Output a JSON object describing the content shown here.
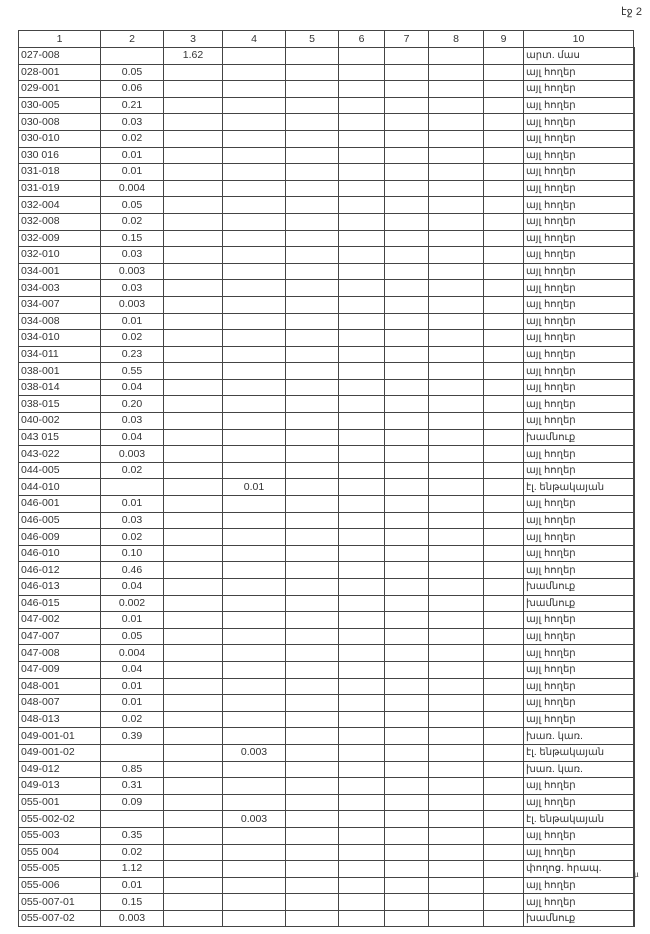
{
  "page_label": "էջ 2",
  "margin_mark": "µ",
  "columns": [
    "1",
    "2",
    "3",
    "4",
    "5",
    "6",
    "7",
    "8",
    "9",
    "10"
  ],
  "rows": [
    [
      "027-008",
      "",
      "1.62",
      "",
      "",
      "",
      "",
      "",
      "",
      "արտ. մաս"
    ],
    [
      "028-001",
      "0.05",
      "",
      "",
      "",
      "",
      "",
      "",
      "",
      "այլ հողեր"
    ],
    [
      "029-001",
      "0.06",
      "",
      "",
      "",
      "",
      "",
      "",
      "",
      "այլ հողեր"
    ],
    [
      "030-005",
      "0.21",
      "",
      "",
      "",
      "",
      "",
      "",
      "",
      "այլ հողեր"
    ],
    [
      "030-008",
      "0.03",
      "",
      "",
      "",
      "",
      "",
      "",
      "",
      "այլ հողեր"
    ],
    [
      "030-010",
      "0.02",
      "",
      "",
      "",
      "",
      "",
      "",
      "",
      "այլ հողեր"
    ],
    [
      "030 016",
      "0.01",
      "",
      "",
      "",
      "",
      "",
      "",
      "",
      "այլ հողեր"
    ],
    [
      "031-018",
      "0.01",
      "",
      "",
      "",
      "",
      "",
      "",
      "",
      "այլ հողեր"
    ],
    [
      "031-019",
      "0.004",
      "",
      "",
      "",
      "",
      "",
      "",
      "",
      "այլ հողեր"
    ],
    [
      "032-004",
      "0.05",
      "",
      "",
      "",
      "",
      "",
      "",
      "",
      "այլ հողեր"
    ],
    [
      "032-008",
      "0.02",
      "",
      "",
      "",
      "",
      "",
      "",
      "",
      "այլ հողեր"
    ],
    [
      "032-009",
      "0.15",
      "",
      "",
      "",
      "",
      "",
      "",
      "",
      "այլ հողեր"
    ],
    [
      "032-010",
      "0.03",
      "",
      "",
      "",
      "",
      "",
      "",
      "",
      "այլ հողեր"
    ],
    [
      "034-001",
      "0.003",
      "",
      "",
      "",
      "",
      "",
      "",
      "",
      "այլ հողեր"
    ],
    [
      "034-003",
      "0.03",
      "",
      "",
      "",
      "",
      "",
      "",
      "",
      "այլ հողեր"
    ],
    [
      "034-007",
      "0.003",
      "",
      "",
      "",
      "",
      "",
      "",
      "",
      "այլ հողեր"
    ],
    [
      "034-008",
      "0.01",
      "",
      "",
      "",
      "",
      "",
      "",
      "",
      "այլ հողեր"
    ],
    [
      "034-010",
      "0.02",
      "",
      "",
      "",
      "",
      "",
      "",
      "",
      "այլ հողեր"
    ],
    [
      "034-011",
      "0.23",
      "",
      "",
      "",
      "",
      "",
      "",
      "",
      "այլ հողեր"
    ],
    [
      "038-001",
      "0.55",
      "",
      "",
      "",
      "",
      "",
      "",
      "",
      "այլ հողեր"
    ],
    [
      "038-014",
      "0.04",
      "",
      "",
      "",
      "",
      "",
      "",
      "",
      "այլ հողեր"
    ],
    [
      "038-015",
      "0.20",
      "",
      "",
      "",
      "",
      "",
      "",
      "",
      "այլ հողեր"
    ],
    [
      "040-002",
      "0.03",
      "",
      "",
      "",
      "",
      "",
      "",
      "",
      "այլ հողեր"
    ],
    [
      "043 015",
      "0.04",
      "",
      "",
      "",
      "",
      "",
      "",
      "",
      "խամնուք"
    ],
    [
      "043-022",
      "0.003",
      "",
      "",
      "",
      "",
      "",
      "",
      "",
      "այլ հողեր"
    ],
    [
      "044-005",
      "0.02",
      "",
      "",
      "",
      "",
      "",
      "",
      "",
      "այլ հողեր"
    ],
    [
      "044-010",
      "",
      "",
      "0.01",
      "",
      "",
      "",
      "",
      "",
      "էլ. ենթակայան"
    ],
    [
      "046-001",
      "0.01",
      "",
      "",
      "",
      "",
      "",
      "",
      "",
      "այլ հողեր"
    ],
    [
      "046-005",
      "0.03",
      "",
      "",
      "",
      "",
      "",
      "",
      "",
      "այլ հողեր"
    ],
    [
      "046-009",
      "0.02",
      "",
      "",
      "",
      "",
      "",
      "",
      "",
      "այլ հողեր"
    ],
    [
      "046-010",
      "0.10",
      "",
      "",
      "",
      "",
      "",
      "",
      "",
      "այլ հողեր"
    ],
    [
      "046-012",
      "0.46",
      "",
      "",
      "",
      "",
      "",
      "",
      "",
      "այլ հողեր"
    ],
    [
      "046-013",
      "0.04",
      "",
      "",
      "",
      "",
      "",
      "",
      "",
      "խամնուք"
    ],
    [
      "046-015",
      "0.002",
      "",
      "",
      "",
      "",
      "",
      "",
      "",
      "խամնուք"
    ],
    [
      "047-002",
      "0.01",
      "",
      "",
      "",
      "",
      "",
      "",
      "",
      "այլ հողեր"
    ],
    [
      "047-007",
      "0.05",
      "",
      "",
      "",
      "",
      "",
      "",
      "",
      "այլ հողեր"
    ],
    [
      "047-008",
      "0.004",
      "",
      "",
      "",
      "",
      "",
      "",
      "",
      "այլ հողեր"
    ],
    [
      "047-009",
      "0.04",
      "",
      "",
      "",
      "",
      "",
      "",
      "",
      "այլ հողեր"
    ],
    [
      "048-001",
      "0.01",
      "",
      "",
      "",
      "",
      "",
      "",
      "",
      "այլ հողեր"
    ],
    [
      "048-007",
      "0.01",
      "",
      "",
      "",
      "",
      "",
      "",
      "",
      "այլ հողեր"
    ],
    [
      "048-013",
      "0.02",
      "",
      "",
      "",
      "",
      "",
      "",
      "",
      "այլ հողեր"
    ],
    [
      "049-001-01",
      "0.39",
      "",
      "",
      "",
      "",
      "",
      "",
      "",
      "խառ. կառ."
    ],
    [
      "049-001-02",
      "",
      "",
      "0.003",
      "",
      "",
      "",
      "",
      "",
      "էլ. ենթակայան"
    ],
    [
      "049-012",
      "0.85",
      "",
      "",
      "",
      "",
      "",
      "",
      "",
      "խառ. կառ."
    ],
    [
      "049-013",
      "0.31",
      "",
      "",
      "",
      "",
      "",
      "",
      "",
      "այլ հողեր"
    ],
    [
      "055-001",
      "0.09",
      "",
      "",
      "",
      "",
      "",
      "",
      "",
      "այլ հողեր"
    ],
    [
      "055-002-02",
      "",
      "",
      "0.003",
      "",
      "",
      "",
      "",
      "",
      "էլ. ենթակայան"
    ],
    [
      "055-003",
      "0.35",
      "",
      "",
      "",
      "",
      "",
      "",
      "",
      "այլ հողեր"
    ],
    [
      "055 004",
      "0.02",
      "",
      "",
      "",
      "",
      "",
      "",
      "",
      "այլ հողեր"
    ],
    [
      "055-005",
      "1.12",
      "",
      "",
      "",
      "",
      "",
      "",
      "",
      "փողոց. հրապ."
    ],
    [
      "055-006",
      "0.01",
      "",
      "",
      "",
      "",
      "",
      "",
      "",
      "այլ հողեր"
    ],
    [
      "055-007-01",
      "0.15",
      "",
      "",
      "",
      "",
      "",
      "",
      "",
      "այլ հողեր"
    ],
    [
      "055-007-02",
      "0.003",
      "",
      "",
      "",
      "",
      "",
      "",
      "",
      "խամնուք"
    ]
  ]
}
